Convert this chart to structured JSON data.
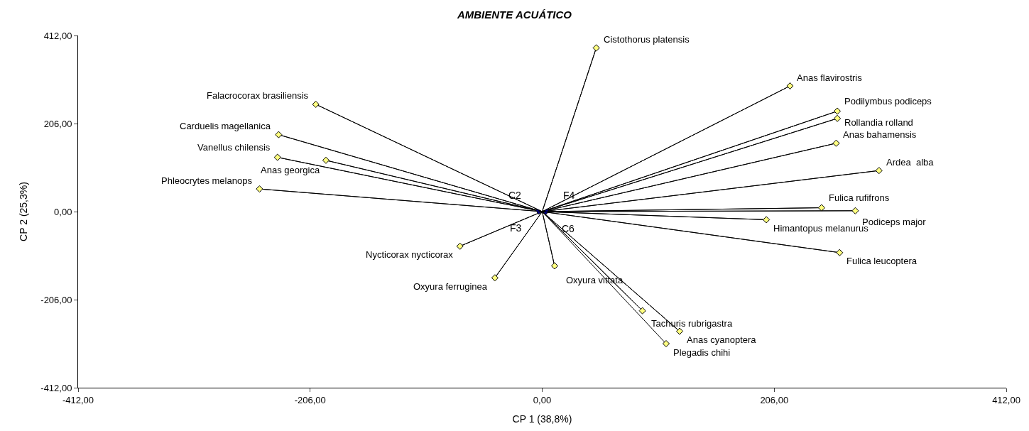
{
  "chart_data": {
    "type": "scatter",
    "title": "AMBIENTE ACUÁTICO",
    "xlabel": "CP 1 (38,8%)",
    "ylabel": "CP 2 (25,3%)",
    "xlim": [
      -412,
      412
    ],
    "ylim": [
      -412,
      412
    ],
    "xticks": [
      {
        "value": -412,
        "label": "-412,00"
      },
      {
        "value": -206,
        "label": "-206,00"
      },
      {
        "value": 0,
        "label": "0,00"
      },
      {
        "value": 206,
        "label": "206,00"
      },
      {
        "value": 412,
        "label": "412,00"
      }
    ],
    "yticks": [
      {
        "value": -412,
        "label": "-412,00"
      },
      {
        "value": -206,
        "label": "-206,00"
      },
      {
        "value": 0,
        "label": "0,00"
      },
      {
        "value": 206,
        "label": "206,00"
      },
      {
        "value": 412,
        "label": "412,00"
      }
    ],
    "marker": "diamond",
    "series": [
      {
        "type": "line",
        "marker": "none",
        "color": "#000000",
        "x": [
          0,
          48,
          0,
          220,
          0,
          262,
          0,
          262,
          0,
          261,
          0,
          299,
          0,
          248,
          0,
          278,
          0,
          199,
          0,
          264,
          0,
          -201,
          0,
          -234,
          0,
          -235,
          0,
          -192,
          0,
          -251,
          0,
          -73,
          0,
          -42,
          0,
          11,
          0,
          89,
          0,
          122,
          0,
          110
        ],
        "values": [
          0,
          383,
          0,
          294,
          0,
          235,
          0,
          218,
          0,
          160,
          0,
          96,
          0,
          9,
          0,
          2,
          0,
          -19,
          0,
          -96,
          0,
          251,
          0,
          180,
          0,
          127,
          0,
          120,
          0,
          53,
          0,
          -81,
          0,
          -155,
          0,
          -127,
          0,
          -232,
          0,
          -280,
          0,
          -309
        ]
      },
      {
        "color": "#ffff80",
        "x": [
          48,
          220,
          262,
          262,
          261,
          299,
          248,
          278,
          199,
          264,
          -201,
          -234,
          -235,
          -192,
          -251,
          -73,
          -42,
          11,
          89,
          122,
          110
        ],
        "values": [
          383,
          294,
          235,
          218,
          160,
          96,
          9,
          2,
          -19,
          -96,
          251,
          180,
          127,
          120,
          53,
          -81,
          -155,
          -127,
          -232,
          -280,
          -309
        ]
      },
      {
        "color": "#000080",
        "x": [
          -4,
          4,
          -3,
          3
        ],
        "values": [
          2,
          2,
          -2,
          -3
        ]
      }
    ],
    "annotations": [
      {
        "text": "Cistothorus platensis",
        "x": 48,
        "y": 383
      },
      {
        "text": "Anas flavirostris",
        "x": 220,
        "y": 294
      },
      {
        "text": "Podilymbus podiceps",
        "x": 262,
        "y": 235
      },
      {
        "text": "Rollandia rolland",
        "x": 262,
        "y": 218
      },
      {
        "text": "Anas bahamensis",
        "x": 261,
        "y": 160
      },
      {
        "text": "Ardea  alba",
        "x": 299,
        "y": 96
      },
      {
        "text": "Fulica rufifrons",
        "x": 248,
        "y": 9
      },
      {
        "text": "Podiceps major",
        "x": 278,
        "y": 2
      },
      {
        "text": "Himantopus melanurus",
        "x": 199,
        "y": -19
      },
      {
        "text": "Fulica leucoptera",
        "x": 264,
        "y": -96
      },
      {
        "text": "Falacrocorax brasiliensis",
        "x": -201,
        "y": 251
      },
      {
        "text": "Carduelis magellanica",
        "x": -234,
        "y": 180
      },
      {
        "text": "Vanellus chilensis",
        "x": -235,
        "y": 127
      },
      {
        "text": "Anas georgica",
        "x": -192,
        "y": 120
      },
      {
        "text": "Phleocrytes melanops",
        "x": -251,
        "y": 53
      },
      {
        "text": "Nycticorax nycticorax",
        "x": -73,
        "y": -81
      },
      {
        "text": "Oxyura ferruginea",
        "x": -42,
        "y": -155
      },
      {
        "text": "Oxyura vittata",
        "x": 11,
        "y": -127
      },
      {
        "text": "Tachuris rubrigastra",
        "x": 89,
        "y": -232
      },
      {
        "text": "Anas cyanoptera",
        "x": 122,
        "y": -280
      },
      {
        "text": "Plegadis chihi",
        "x": 110,
        "y": -309
      },
      {
        "text": "C2",
        "x": -4,
        "y": 2
      },
      {
        "text": "F4",
        "x": 4,
        "y": 2
      },
      {
        "text": "F3",
        "x": -3,
        "y": -2
      },
      {
        "text": "C6",
        "x": 3,
        "y": -3
      }
    ]
  }
}
